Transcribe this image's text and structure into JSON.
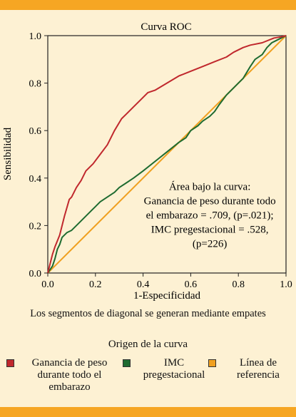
{
  "chart_data": {
    "type": "line",
    "title": "Curva ROC",
    "xlabel": "1-Especificidad",
    "ylabel": "Sensibilidad",
    "xlim": [
      0,
      1
    ],
    "ylim": [
      0,
      1
    ],
    "xticks": [
      "0.0",
      "0.2",
      "0.4",
      "0.6",
      "0.8",
      "1.0"
    ],
    "yticks": [
      "0.0",
      "0.2",
      "0.4",
      "0.6",
      "0.8",
      "1.0"
    ],
    "grid": false,
    "annotation": [
      "Área bajo la curva:",
      "Ganancia de peso durante todo",
      "el embarazo = .709, (p=.021);",
      "IMC pregestacional = .528,",
      "(p=226)"
    ],
    "caption": "Los segmentos de diagonal se generan mediante empates",
    "legend_title": "Origen de la curva",
    "legend_position": "bottom",
    "series": [
      {
        "name": "Ganancia de peso durante todo el embarazo",
        "label_lines": [
          "Ganancia de peso",
          "durante todo el",
          "embarazo"
        ],
        "color": "#c0282d",
        "x": [
          0,
          0.01,
          0.02,
          0.03,
          0.05,
          0.07,
          0.09,
          0.1,
          0.12,
          0.14,
          0.16,
          0.19,
          0.22,
          0.25,
          0.28,
          0.31,
          0.33,
          0.36,
          0.39,
          0.42,
          0.45,
          0.5,
          0.55,
          0.6,
          0.65,
          0.7,
          0.75,
          0.78,
          0.82,
          0.85,
          0.9,
          0.95,
          0.98,
          1.0
        ],
        "y": [
          0,
          0.04,
          0.08,
          0.11,
          0.16,
          0.24,
          0.31,
          0.32,
          0.36,
          0.39,
          0.43,
          0.46,
          0.5,
          0.54,
          0.6,
          0.65,
          0.67,
          0.7,
          0.73,
          0.76,
          0.77,
          0.8,
          0.83,
          0.85,
          0.87,
          0.89,
          0.91,
          0.93,
          0.95,
          0.96,
          0.97,
          0.99,
          0.995,
          1.0
        ]
      },
      {
        "name": "IMC pregestacional",
        "label_lines": [
          "IMC",
          "pregestacional"
        ],
        "color": "#1e6b30",
        "x": [
          0,
          0.02,
          0.03,
          0.04,
          0.05,
          0.06,
          0.08,
          0.1,
          0.12,
          0.15,
          0.18,
          0.2,
          0.22,
          0.25,
          0.28,
          0.3,
          0.33,
          0.36,
          0.4,
          0.45,
          0.5,
          0.55,
          0.58,
          0.6,
          0.63,
          0.65,
          0.68,
          0.7,
          0.72,
          0.75,
          0.78,
          0.8,
          0.82,
          0.85,
          0.87,
          0.9,
          0.92,
          0.94,
          0.96,
          0.98,
          1.0
        ],
        "y": [
          0,
          0.03,
          0.06,
          0.1,
          0.12,
          0.15,
          0.17,
          0.18,
          0.2,
          0.23,
          0.26,
          0.28,
          0.3,
          0.32,
          0.34,
          0.36,
          0.38,
          0.4,
          0.43,
          0.47,
          0.51,
          0.55,
          0.57,
          0.6,
          0.62,
          0.64,
          0.66,
          0.68,
          0.71,
          0.75,
          0.78,
          0.8,
          0.82,
          0.87,
          0.9,
          0.92,
          0.95,
          0.97,
          0.98,
          0.99,
          1.0
        ]
      },
      {
        "name": "Línea de referencia",
        "label_lines": [
          "Línea de",
          "referencia"
        ],
        "color": "#f0a020",
        "x": [
          0,
          1
        ],
        "y": [
          0,
          1
        ]
      }
    ]
  }
}
